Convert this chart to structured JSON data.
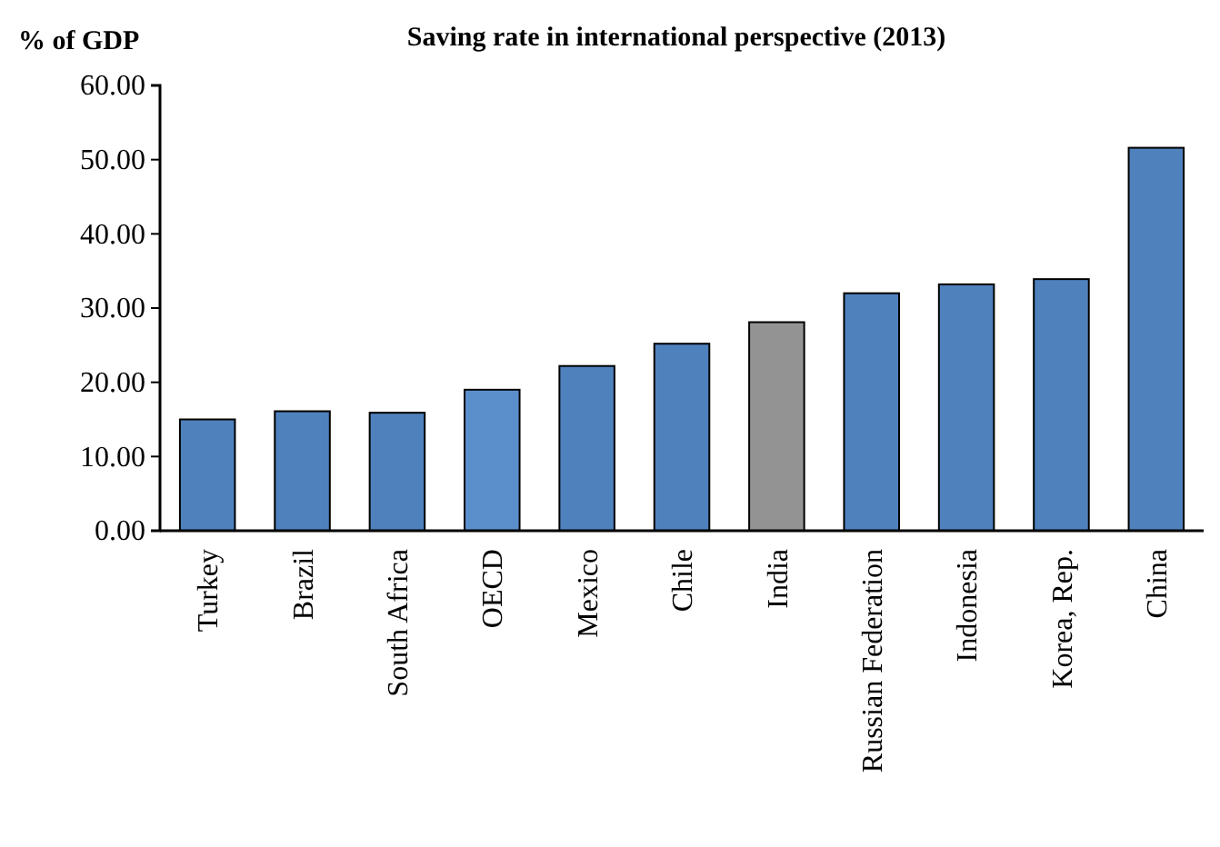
{
  "chart_data": {
    "type": "bar",
    "title": "Saving rate in international perspective (2013)",
    "ylabel": "% of GDP",
    "categories": [
      "Turkey",
      "Brazil",
      "South Africa",
      "OECD",
      "Mexico",
      "Chile",
      "India",
      "Russian Federation",
      "Indonesia",
      "Korea, Rep.",
      "China"
    ],
    "values": [
      15.0,
      16.1,
      15.9,
      19.0,
      22.2,
      25.2,
      28.1,
      32.0,
      33.2,
      33.9,
      51.6
    ],
    "colors": [
      "#4f81bd",
      "#4f81bd",
      "#4f81bd",
      "#5b8fcb",
      "#4f81bd",
      "#4f81bd",
      "#939393",
      "#4f81bd",
      "#4f81bd",
      "#4f81bd",
      "#4f81bd"
    ],
    "ylim": [
      0,
      60
    ],
    "yticks": [
      {
        "value": 0,
        "label": "0.00"
      },
      {
        "value": 10,
        "label": "10.00"
      },
      {
        "value": 20,
        "label": "20.00"
      },
      {
        "value": 30,
        "label": "30.00"
      },
      {
        "value": 40,
        "label": "40.00"
      },
      {
        "value": 50,
        "label": "50.00"
      },
      {
        "value": 60,
        "label": "60.00"
      }
    ],
    "grid": false
  }
}
